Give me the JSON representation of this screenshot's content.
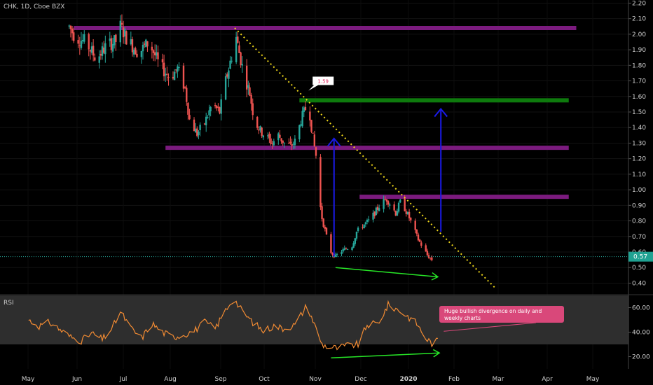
{
  "chart_data": {
    "type": "candlestick",
    "symbol_label": "CHK, 1D, Cboe BZX",
    "price_axis": {
      "range": [
        0.33,
        2.22
      ],
      "ticks": [
        "2.20",
        "2.10",
        "2.00",
        "1.90",
        "1.80",
        "1.70",
        "1.60",
        "1.50",
        "1.40",
        "1.30",
        "1.20",
        "1.10",
        "1.00",
        "0.90",
        "0.80",
        "0.70",
        "0.60",
        "0.50",
        "0.40"
      ]
    },
    "last_price": "0.57",
    "time_axis": {
      "labels": [
        "May",
        "Jun",
        "Jul",
        "Aug",
        "Sep",
        "Oct",
        "Nov",
        "Dec",
        "2020",
        "Feb",
        "Mar",
        "Apr",
        "May"
      ]
    },
    "price_path": [
      [
        "2019-05-28",
        2.05
      ],
      [
        "2019-06-01",
        1.98
      ],
      [
        "2019-06-08",
        1.95
      ],
      [
        "2019-06-15",
        1.84
      ],
      [
        "2019-06-22",
        1.93
      ],
      [
        "2019-06-29",
        1.96
      ],
      [
        "2019-07-01",
        2.05
      ],
      [
        "2019-07-06",
        1.96
      ],
      [
        "2019-07-13",
        1.88
      ],
      [
        "2019-07-20",
        1.95
      ],
      [
        "2019-07-27",
        1.8
      ],
      [
        "2019-08-03",
        1.72
      ],
      [
        "2019-08-08",
        1.78
      ],
      [
        "2019-08-13",
        1.65
      ],
      [
        "2019-08-16",
        1.45
      ],
      [
        "2019-08-21",
        1.36
      ],
      [
        "2019-08-26",
        1.43
      ],
      [
        "2019-08-31",
        1.55
      ],
      [
        "2019-09-05",
        1.5
      ],
      [
        "2019-09-09",
        1.7
      ],
      [
        "2019-09-12",
        1.82
      ],
      [
        "2019-09-16",
        1.98
      ],
      [
        "2019-09-18",
        1.88
      ],
      [
        "2019-09-21",
        1.75
      ],
      [
        "2019-09-25",
        1.62
      ],
      [
        "2019-09-28",
        1.45
      ],
      [
        "2019-10-02",
        1.38
      ],
      [
        "2019-10-06",
        1.34
      ],
      [
        "2019-10-10",
        1.3
      ],
      [
        "2019-10-14",
        1.35
      ],
      [
        "2019-10-18",
        1.3
      ],
      [
        "2019-10-22",
        1.28
      ],
      [
        "2019-10-26",
        1.32
      ],
      [
        "2019-10-29",
        1.45
      ],
      [
        "2019-11-01",
        1.52
      ],
      [
        "2019-11-02",
        1.57
      ],
      [
        "2019-11-04",
        1.48
      ],
      [
        "2019-11-06",
        1.33
      ],
      [
        "2019-11-08",
        1.22
      ],
      [
        "2019-11-10",
        0.95
      ],
      [
        "2019-11-12",
        0.82
      ],
      [
        "2019-11-15",
        0.7
      ],
      [
        "2019-11-18",
        0.6
      ],
      [
        "2019-11-21",
        0.57
      ],
      [
        "2019-11-24",
        0.6
      ],
      [
        "2019-11-28",
        0.62
      ],
      [
        "2019-12-02",
        0.64
      ],
      [
        "2019-12-05",
        0.73
      ],
      [
        "2019-12-09",
        0.77
      ],
      [
        "2019-12-13",
        0.8
      ],
      [
        "2019-12-17",
        0.85
      ],
      [
        "2019-12-21",
        0.91
      ],
      [
        "2019-12-25",
        0.94
      ],
      [
        "2019-12-28",
        0.9
      ],
      [
        "2019-12-31",
        0.85
      ],
      [
        "2020-01-03",
        0.92
      ],
      [
        "2020-01-06",
        0.88
      ],
      [
        "2020-01-09",
        0.82
      ],
      [
        "2020-01-12",
        0.75
      ],
      [
        "2020-01-15",
        0.68
      ],
      [
        "2020-01-18",
        0.63
      ],
      [
        "2020-01-21",
        0.58
      ],
      [
        "2020-01-24",
        0.55
      ],
      [
        "2020-01-26",
        0.57
      ]
    ],
    "levels": [
      {
        "name": "resistance-2.04",
        "price": 2.04,
        "from": "2019-05-31",
        "to": "2020-04-29",
        "color": "#7b1b7e"
      },
      {
        "name": "target-1.58",
        "price": 1.575,
        "from": "2019-10-28",
        "to": "2020-04-24",
        "color": "#0e7a0d"
      },
      {
        "name": "level-1.27",
        "price": 1.27,
        "from": "2019-07-31",
        "to": "2020-04-24",
        "color": "#7b1b7e"
      },
      {
        "name": "level-0.96",
        "price": 0.955,
        "from": "2019-12-07",
        "to": "2020-04-24",
        "color": "#7b1b7e"
      }
    ],
    "trendline": {
      "from": [
        "2019-09-15",
        2.04
      ],
      "to": [
        "2020-03-06",
        0.37
      ],
      "color": "#f0d81a"
    },
    "arrows": [
      {
        "x": "2019-11-20",
        "from": 0.57,
        "to": 1.33,
        "color": "#1a1ae6"
      },
      {
        "x": "2020-01-30",
        "from": 0.73,
        "to": 1.52,
        "color": "#1a1ae6"
      }
    ],
    "price_callout": {
      "label": "1.59",
      "date": "2019-11-03",
      "price": 1.61
    },
    "divergence_price": {
      "from": [
        "2019-11-21",
        0.5
      ],
      "to": [
        "2020-01-28",
        0.44
      ],
      "color": "#27e627"
    },
    "rsi": {
      "label": "RSI",
      "range": [
        10,
        70
      ],
      "ticks": [
        "60.00",
        "40.00",
        "20.00"
      ],
      "zone": [
        30,
        70
      ],
      "path": [
        [
          "2019-05-01",
          50
        ],
        [
          "2019-05-08",
          45
        ],
        [
          "2019-05-15",
          48
        ],
        [
          "2019-05-22",
          42
        ],
        [
          "2019-05-29",
          36
        ],
        [
          "2019-06-05",
          33
        ],
        [
          "2019-06-12",
          39
        ],
        [
          "2019-06-19",
          34
        ],
        [
          "2019-06-26",
          44
        ],
        [
          "2019-07-01",
          57
        ],
        [
          "2019-07-08",
          43
        ],
        [
          "2019-07-15",
          35
        ],
        [
          "2019-07-22",
          47
        ],
        [
          "2019-07-29",
          40
        ],
        [
          "2019-08-05",
          36
        ],
        [
          "2019-08-12",
          38
        ],
        [
          "2019-08-19",
          41
        ],
        [
          "2019-08-26",
          48
        ],
        [
          "2019-09-02",
          43
        ],
        [
          "2019-09-09",
          58
        ],
        [
          "2019-09-14",
          68
        ],
        [
          "2019-09-20",
          57
        ],
        [
          "2019-09-27",
          48
        ],
        [
          "2019-10-04",
          41
        ],
        [
          "2019-10-11",
          45
        ],
        [
          "2019-10-18",
          43
        ],
        [
          "2019-10-25",
          46
        ],
        [
          "2019-11-01",
          60
        ],
        [
          "2019-11-04",
          56
        ],
        [
          "2019-11-08",
          43
        ],
        [
          "2019-11-12",
          30
        ],
        [
          "2019-11-16",
          28
        ],
        [
          "2019-11-22",
          27
        ],
        [
          "2019-11-29",
          29
        ],
        [
          "2019-12-06",
          30
        ],
        [
          "2019-12-12",
          46
        ],
        [
          "2019-12-19",
          47
        ],
        [
          "2019-12-26",
          62
        ],
        [
          "2020-01-02",
          58
        ],
        [
          "2020-01-09",
          52
        ],
        [
          "2020-01-14",
          47
        ],
        [
          "2020-01-20",
          35
        ],
        [
          "2020-01-24",
          31
        ],
        [
          "2020-01-28",
          33
        ]
      ],
      "color": "#f28b33"
    },
    "divergence_rsi": {
      "from": [
        "2019-11-18",
        19
      ],
      "to": [
        "2020-01-29",
        23
      ],
      "color": "#27e627"
    },
    "annotation": {
      "text_line1": "Huge bullish divergence on daily and",
      "text_line2": "weekly charts",
      "color": "#d9487a",
      "points_to": [
        "2020-01-31",
        35
      ]
    }
  }
}
